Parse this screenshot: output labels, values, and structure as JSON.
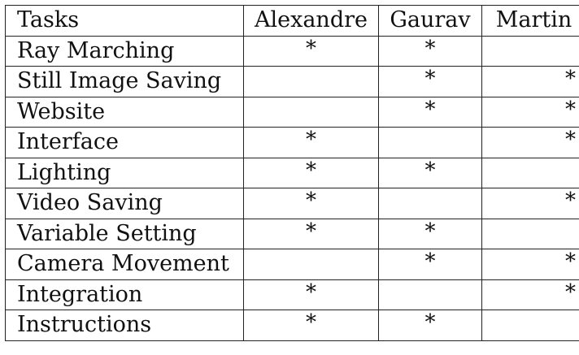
{
  "table": {
    "headers": [
      "Tasks",
      "Alexandre",
      "Gaurav",
      "Martin"
    ],
    "rows": [
      {
        "task": "Ray Marching",
        "alexandre": "*",
        "gaurav": "*",
        "martin": ""
      },
      {
        "task": "Still Image Saving",
        "alexandre": "",
        "gaurav": "*",
        "martin": "*"
      },
      {
        "task": "Website",
        "alexandre": "",
        "gaurav": "*",
        "martin": "*"
      },
      {
        "task": "Interface",
        "alexandre": "*",
        "gaurav": "",
        "martin": "*"
      },
      {
        "task": "Lighting",
        "alexandre": "*",
        "gaurav": "*",
        "martin": ""
      },
      {
        "task": "Video Saving",
        "alexandre": "*",
        "gaurav": "",
        "martin": "*"
      },
      {
        "task": "Variable Setting",
        "alexandre": "*",
        "gaurav": "*",
        "martin": ""
      },
      {
        "task": "Camera Movement",
        "alexandre": "",
        "gaurav": "*",
        "martin": "*"
      },
      {
        "task": "Integration",
        "alexandre": "*",
        "gaurav": "",
        "martin": "*"
      },
      {
        "task": "Instructions",
        "alexandre": "*",
        "gaurav": "*",
        "martin": ""
      }
    ]
  }
}
